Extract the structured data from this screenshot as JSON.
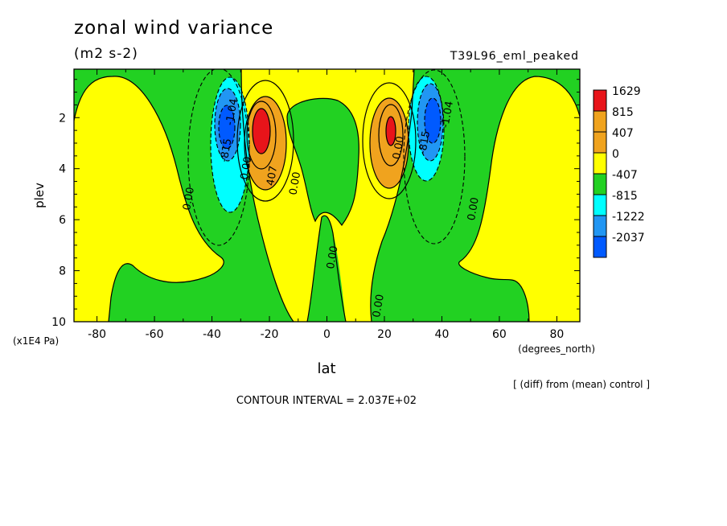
{
  "title": "zonal wind variance",
  "units": "(m2 s-2)",
  "run_label": "T39L96_eml_peaked",
  "diff_note": "[ (diff) from (mean) control ]",
  "contour_interval": "CONTOUR INTERVAL = 2.037E+02",
  "chart_data": {
    "type": "heatmap",
    "xlabel": "lat",
    "xunits": "(degrees_north)",
    "ylabel": "plev",
    "yunits": "(x1E4 Pa)",
    "xlim": [
      -88,
      88
    ],
    "ylim": [
      0.1,
      10
    ],
    "y_inverted": true,
    "xticks": [
      "-80",
      "-60",
      "-40",
      "-20",
      "0",
      "20",
      "40",
      "60",
      "80"
    ],
    "yticks": [
      "2",
      "4",
      "6",
      "8",
      "10"
    ],
    "legend": {
      "placement": "right",
      "labels": [
        "1629",
        "815",
        "407",
        "0",
        "-407",
        "-815",
        "-1222",
        "-2037"
      ],
      "colors": [
        "#e8141a",
        "#f0a31e",
        "#f0a31e",
        "#ffff00",
        "#22d122",
        "#00ffff",
        "#2196f3",
        "#005aff"
      ]
    },
    "contour_labels": [
      {
        "text": "0.00",
        "lat": -47,
        "plev": 5.2
      },
      {
        "text": "0.00",
        "lat": -27,
        "plev": 4.0
      },
      {
        "text": "0.00",
        "lat": -10,
        "plev": 4.6
      },
      {
        "text": "0.00",
        "lat": 3,
        "plev": 7.5
      },
      {
        "text": "0.00",
        "lat": 19,
        "plev": 9.4
      },
      {
        "text": "0.00",
        "lat": 52,
        "plev": 5.6
      },
      {
        "text": "0.00",
        "lat": 26,
        "plev": 3.2
      },
      {
        "text": "-815",
        "lat": -34,
        "plev": 3.3
      },
      {
        "text": "-1.04",
        "lat": -32,
        "plev": 1.8
      },
      {
        "text": "407",
        "lat": -18,
        "plev": 4.3
      },
      {
        "text": "-815",
        "lat": 35,
        "plev": 3.0
      },
      {
        "text": "-1.04",
        "lat": 43,
        "plev": 1.9
      }
    ]
  }
}
